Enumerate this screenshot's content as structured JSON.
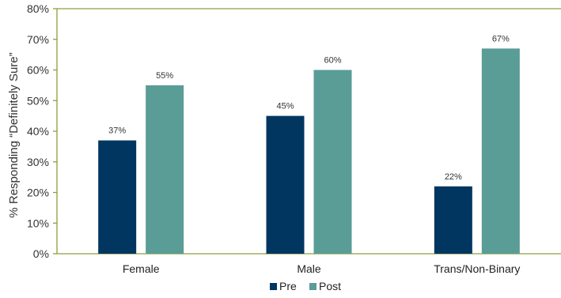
{
  "chart_data": {
    "type": "bar",
    "categories": [
      "Female",
      "Male",
      "Trans/Non-Binary"
    ],
    "series": [
      {
        "name": "Pre",
        "values": [
          37,
          45,
          22
        ],
        "color": "#003660"
      },
      {
        "name": "Post",
        "values": [
          55,
          60,
          67
        ],
        "color": "#5a9c96"
      }
    ],
    "data_labels": [
      [
        "37%",
        "45%",
        "22%"
      ],
      [
        "55%",
        "60%",
        "67%"
      ]
    ],
    "ylabel": "% Responding “Definitely Sure”",
    "ylim": [
      0,
      80
    ],
    "yticks": [
      0,
      10,
      20,
      30,
      40,
      50,
      60,
      70,
      80
    ],
    "ytick_labels": [
      "0%",
      "10%",
      "20%",
      "30%",
      "40%",
      "50%",
      "60%",
      "70%",
      "80%"
    ],
    "grid": false,
    "legend_position": "bottom-center",
    "axis_color": "#8aa03a"
  }
}
